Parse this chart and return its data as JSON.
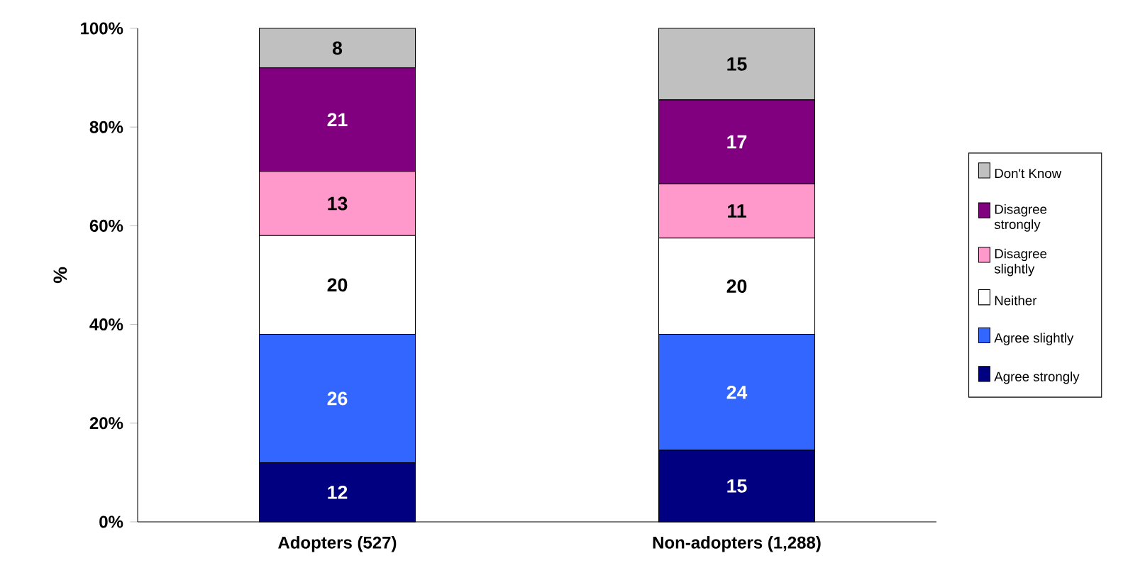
{
  "chart_data": {
    "type": "bar",
    "stacked": true,
    "ylabel": "%",
    "categories": [
      "Adopters (527)",
      "Non-adopters (1,288)"
    ],
    "series": [
      {
        "name": "Agree strongly",
        "color": "#000080",
        "values": [
          12,
          14.5
        ],
        "value_labels": [
          "12",
          "15"
        ]
      },
      {
        "name": "Agree slightly",
        "color": "#3366ff",
        "values": [
          26,
          23.5
        ],
        "value_labels": [
          "26",
          "24"
        ]
      },
      {
        "name": "Neither",
        "color": "#ffffff",
        "values": [
          20,
          19.5
        ],
        "value_labels": [
          "20",
          "20"
        ]
      },
      {
        "name": "Disagree slightly",
        "color": "#ff99cc",
        "values": [
          13,
          11
        ],
        "value_labels": [
          "13",
          "11"
        ]
      },
      {
        "name": "Disagree strongly",
        "color": "#800080",
        "values": [
          21,
          17
        ],
        "value_labels": [
          "21",
          "17"
        ]
      },
      {
        "name": "Don't Know",
        "color": "#c0c0c0",
        "values": [
          8,
          14.5
        ],
        "value_labels": [
          "8",
          "15"
        ]
      }
    ],
    "ylim": [
      0,
      100
    ],
    "yticks": [
      {
        "value": 0,
        "label": "0%"
      },
      {
        "value": 20,
        "label": "20%"
      },
      {
        "value": 40,
        "label": "40%"
      },
      {
        "value": 60,
        "label": "60%"
      },
      {
        "value": 80,
        "label": "80%"
      },
      {
        "value": 100,
        "label": "100%"
      }
    ],
    "legend": "right",
    "grid": false
  }
}
